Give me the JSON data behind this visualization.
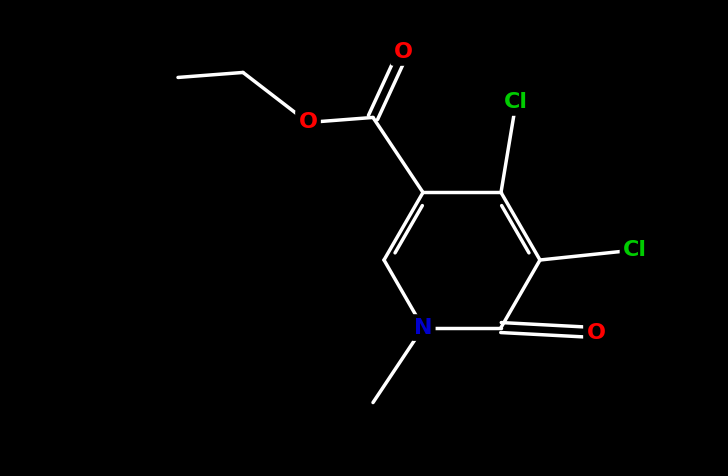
{
  "background_color": "#000000",
  "bond_color": "#ffffff",
  "atom_colors": {
    "O": "#ff0000",
    "N": "#0000cc",
    "Cl": "#00cc00",
    "C": "#ffffff"
  },
  "figsize": [
    7.28,
    4.76
  ],
  "dpi": 100,
  "font_size": 16,
  "bond_width": 2.5
}
